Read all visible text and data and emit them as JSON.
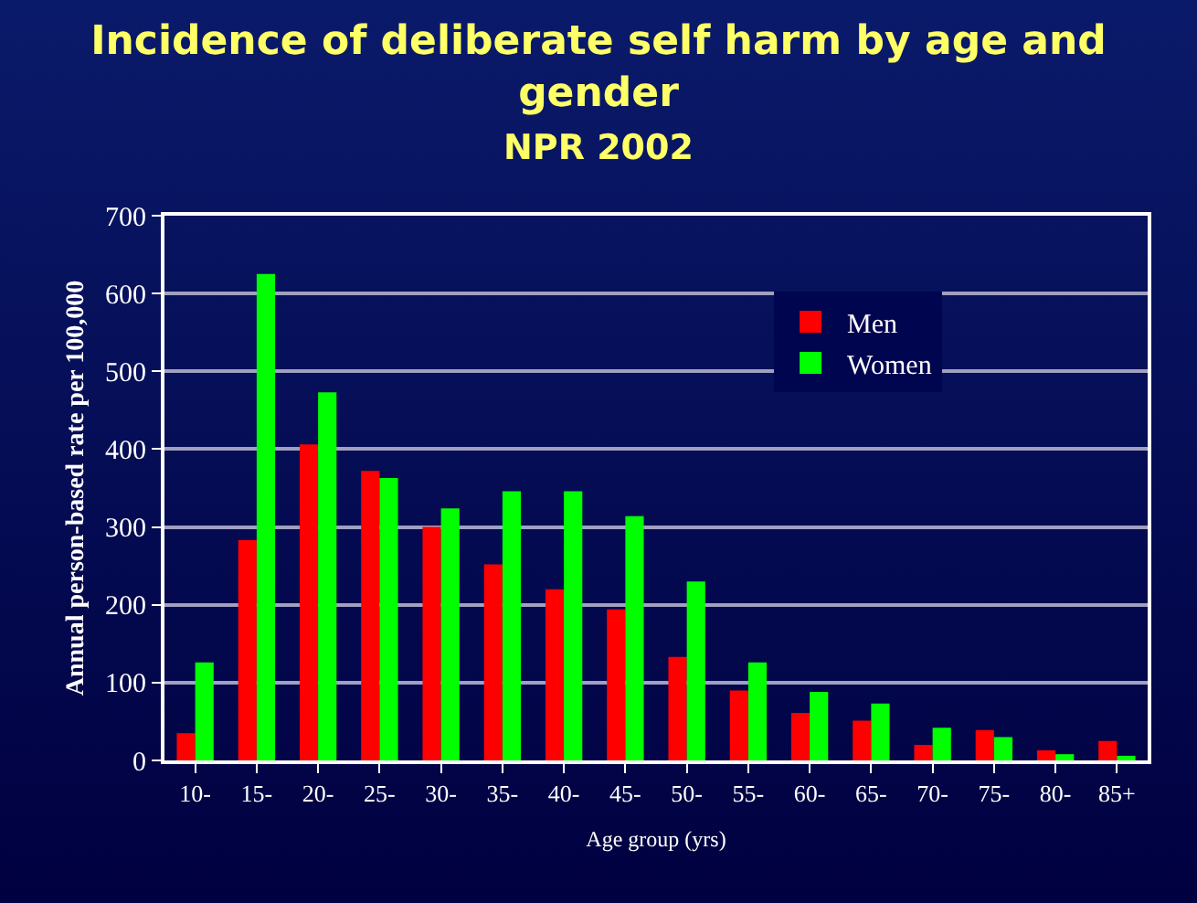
{
  "chart_data": {
    "type": "bar",
    "title": "Incidence of deliberate self harm by age and gender",
    "subtitle": "NPR 2002",
    "xlabel": "Age group (yrs)",
    "ylabel": "Annual person-based rate per 100,000",
    "categories": [
      "10-",
      "15-",
      "20-",
      "25-",
      "30-",
      "35-",
      "40-",
      "45-",
      "50-",
      "55-",
      "60-",
      "65-",
      "70-",
      "75-",
      "80-",
      "85+"
    ],
    "series": [
      {
        "name": "Men",
        "color": "#ff0000",
        "values": [
          35,
          283,
          406,
          372,
          300,
          252,
          220,
          194,
          133,
          90,
          61,
          51,
          20,
          39,
          13,
          25
        ]
      },
      {
        "name": "Women",
        "color": "#00ff00",
        "values": [
          126,
          625,
          473,
          363,
          324,
          346,
          346,
          314,
          230,
          126,
          88,
          73,
          42,
          30,
          8,
          6
        ]
      }
    ],
    "ylim": [
      0,
      700
    ],
    "yticks": [
      0,
      100,
      200,
      300,
      400,
      500,
      600,
      700
    ],
    "grid": "y",
    "legend": "top right"
  }
}
